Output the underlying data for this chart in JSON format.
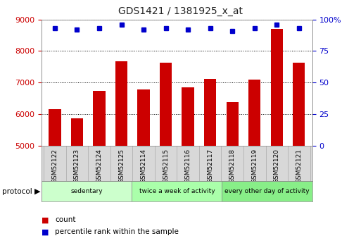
{
  "title": "GDS1421 / 1381925_x_at",
  "samples": [
    "GSM52122",
    "GSM52123",
    "GSM52124",
    "GSM52125",
    "GSM52114",
    "GSM52115",
    "GSM52116",
    "GSM52117",
    "GSM52118",
    "GSM52119",
    "GSM52120",
    "GSM52121"
  ],
  "counts": [
    6150,
    5870,
    6750,
    7680,
    6780,
    7620,
    6840,
    7120,
    6380,
    7100,
    8700,
    7620
  ],
  "percentile_ranks": [
    93,
    92,
    93,
    96,
    92,
    93,
    92,
    93,
    91,
    93,
    96,
    93
  ],
  "ylim_left": [
    5000,
    9000
  ],
  "ylim_right": [
    0,
    100
  ],
  "yticks_left": [
    5000,
    6000,
    7000,
    8000,
    9000
  ],
  "yticks_right": [
    0,
    25,
    50,
    75,
    100
  ],
  "bar_color": "#cc0000",
  "dot_color": "#0000cc",
  "left_axis_color": "#cc0000",
  "right_axis_color": "#0000cc",
  "grid_color": "#000000",
  "groups": [
    {
      "label": "sedentary",
      "start": 0,
      "end": 4
    },
    {
      "label": "twice a week of activity",
      "start": 4,
      "end": 8
    },
    {
      "label": "every other day of activity",
      "start": 8,
      "end": 12
    }
  ],
  "group_colors": [
    "#ccffcc",
    "#aaffaa",
    "#88ee88"
  ],
  "protocol_label": "protocol",
  "legend_count_label": "count",
  "legend_percentile_label": "percentile rank within the sample",
  "background_color": "#ffffff"
}
